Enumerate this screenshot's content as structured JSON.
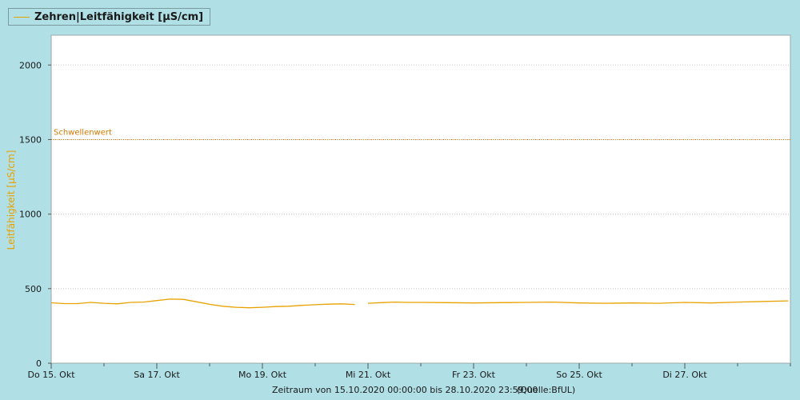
{
  "legend": {
    "label": "Zehren|Leitfähigkeit [µS/cm]"
  },
  "colors": {
    "series": "#e8a200",
    "threshold": "#d07a00",
    "background": "#b0dfe5",
    "plot": "#ffffff"
  },
  "footer": {
    "range": "Zeitraum von 15.10.2020 00:00:00 bis 28.10.2020 23:59:00",
    "source": "(Quelle:BfUL)"
  },
  "chart_data": {
    "type": "line",
    "ylabel": "Leitfähigkeit [µS/cm]",
    "ylim": [
      0,
      2200
    ],
    "yticks": [
      0,
      500,
      1000,
      1500,
      2000
    ],
    "xlim": [
      "2020-10-15",
      "2020-10-29"
    ],
    "xticks": [
      {
        "date": "2020-10-15",
        "label": "Do 15. Okt"
      },
      {
        "date": "2020-10-17",
        "label": "Sa 17. Okt"
      },
      {
        "date": "2020-10-19",
        "label": "Mo 19. Okt"
      },
      {
        "date": "2020-10-21",
        "label": "Mi 21. Okt"
      },
      {
        "date": "2020-10-23",
        "label": "Fr 23. Okt"
      },
      {
        "date": "2020-10-25",
        "label": "So 25. Okt"
      },
      {
        "date": "2020-10-27",
        "label": "Di 27. Okt"
      }
    ],
    "grid": true,
    "threshold": {
      "label": "Schwellenwert",
      "value": 1500
    },
    "series": [
      {
        "name": "Zehren|Leitfähigkeit [µS/cm]",
        "x": [
          "2020-10-15 00:00",
          "2020-10-15 06:00",
          "2020-10-15 12:00",
          "2020-10-15 18:00",
          "2020-10-16 00:00",
          "2020-10-16 06:00",
          "2020-10-16 12:00",
          "2020-10-16 18:00",
          "2020-10-17 00:00",
          "2020-10-17 06:00",
          "2020-10-17 12:00",
          "2020-10-17 18:00",
          "2020-10-18 00:00",
          "2020-10-18 06:00",
          "2020-10-18 12:00",
          "2020-10-18 18:00",
          "2020-10-19 00:00",
          "2020-10-19 06:00",
          "2020-10-19 12:00",
          "2020-10-19 18:00",
          "2020-10-20 00:00",
          "2020-10-20 06:00",
          "2020-10-20 12:00",
          "2020-10-20 18:00",
          null,
          "2020-10-21 00:00",
          "2020-10-21 06:00",
          "2020-10-21 12:00",
          "2020-10-21 18:00",
          "2020-10-22 00:00",
          "2020-10-22 12:00",
          "2020-10-23 00:00",
          "2020-10-23 12:00",
          "2020-10-24 00:00",
          "2020-10-24 12:00",
          "2020-10-25 00:00",
          "2020-10-25 12:00",
          "2020-10-26 00:00",
          "2020-10-26 12:00",
          "2020-10-27 00:00",
          "2020-10-27 12:00",
          "2020-10-28 00:00",
          "2020-10-28 12:00",
          "2020-10-28 23:00"
        ],
        "values": [
          405,
          400,
          400,
          408,
          402,
          398,
          408,
          410,
          420,
          430,
          428,
          412,
          395,
          382,
          375,
          372,
          375,
          380,
          382,
          388,
          392,
          396,
          398,
          394,
          null,
          402,
          406,
          410,
          408,
          408,
          406,
          404,
          406,
          408,
          410,
          404,
          402,
          404,
          402,
          408,
          404,
          410,
          414,
          418
        ]
      }
    ]
  }
}
